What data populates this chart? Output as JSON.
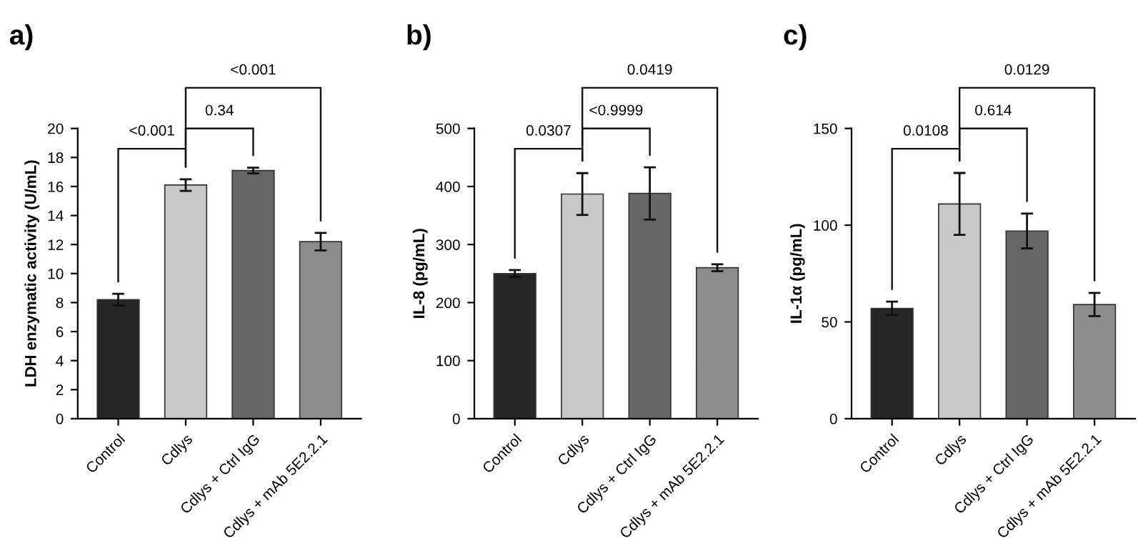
{
  "chart_data": [
    {
      "type": "bar",
      "title": "a)",
      "ylabel": "LDH enzymatic activity (U/mL)",
      "categories": [
        "Control",
        "Cdlys",
        "Cdlys + Ctrl IgG",
        "Cdlys + mAb 5E2.2.1"
      ],
      "values": [
        8.2,
        16.1,
        17.1,
        12.2
      ],
      "errors": [
        0.4,
        0.4,
        0.2,
        0.6
      ],
      "colors": [
        "#262626",
        "#c8c8c8",
        "#666666",
        "#8c8c8c"
      ],
      "ylim": [
        0,
        20
      ],
      "yticks": [
        0,
        2,
        4,
        6,
        8,
        10,
        12,
        14,
        16,
        18,
        20
      ],
      "grid": false,
      "legend": false,
      "annotations": [
        "<0.001",
        "0.34",
        "<0.001"
      ]
    },
    {
      "type": "bar",
      "title": "b)",
      "ylabel": "IL-8 (pg/mL)",
      "categories": [
        "Control",
        "Cdlys",
        "Cdlys + Ctrl IgG",
        "Cdlys + mAb 5E2.2.1"
      ],
      "values": [
        250,
        387,
        388,
        260
      ],
      "errors": [
        6,
        36,
        45,
        6
      ],
      "colors": [
        "#262626",
        "#c8c8c8",
        "#666666",
        "#8c8c8c"
      ],
      "ylim": [
        0,
        500
      ],
      "yticks": [
        0,
        100,
        200,
        300,
        400,
        500
      ],
      "grid": false,
      "legend": false,
      "annotations": [
        "0.0307",
        "<0.9999",
        "0.0419"
      ]
    },
    {
      "type": "bar",
      "title": "c)",
      "ylabel": "IL-1α (pg/mL)",
      "categories": [
        "Control",
        "Cdlys",
        "Cdlys + Ctrl IgG",
        "Cdlys + mAb 5E2.2.1"
      ],
      "values": [
        57,
        111,
        97,
        59
      ],
      "errors": [
        3.5,
        16,
        9,
        6
      ],
      "colors": [
        "#262626",
        "#c8c8c8",
        "#666666",
        "#8c8c8c"
      ],
      "ylim": [
        0,
        150
      ],
      "yticks": [
        0,
        50,
        100,
        150
      ],
      "grid": false,
      "legend": false,
      "annotations": [
        "0.0108",
        "0.614",
        "0.0129"
      ]
    }
  ]
}
